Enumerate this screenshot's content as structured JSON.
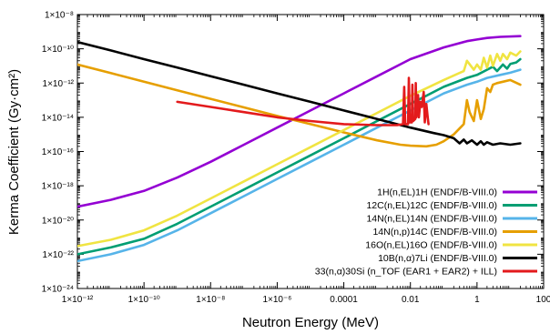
{
  "chart_data": {
    "type": "line",
    "title": "",
    "xlabel": "Neutron Energy (MeV)",
    "ylabel": "Kerma Coefficient (Gy·cm²)",
    "xscale": "log",
    "yscale": "log",
    "xlim": [
      1e-12,
      100
    ],
    "ylim": [
      1e-24,
      1e-08
    ],
    "grid": false,
    "legend_position": "bottom-right",
    "x_ticks": [
      {
        "value": 1e-12,
        "label": "1×10⁻¹²"
      },
      {
        "value": 1e-10,
        "label": "1×10⁻¹⁰"
      },
      {
        "value": 1e-08,
        "label": "1×10⁻⁸"
      },
      {
        "value": 1e-06,
        "label": "1×10⁻⁶"
      },
      {
        "value": 0.0001,
        "label": "0.0001"
      },
      {
        "value": 0.01,
        "label": "0.01"
      },
      {
        "value": 1,
        "label": "1"
      },
      {
        "value": 100,
        "label": "100"
      }
    ],
    "y_ticks": [
      {
        "value": 1e-08,
        "label": "1×10⁻⁸"
      },
      {
        "value": 1e-10,
        "label": "1×10⁻¹⁰"
      },
      {
        "value": 1e-12,
        "label": "1×10⁻¹²"
      },
      {
        "value": 1e-14,
        "label": "1×10⁻¹⁴"
      },
      {
        "value": 1e-16,
        "label": "1×10⁻¹⁶"
      },
      {
        "value": 1e-18,
        "label": "1×10⁻¹⁸"
      },
      {
        "value": 1e-20,
        "label": "1×10⁻²⁰"
      },
      {
        "value": 1e-22,
        "label": "1×10⁻²²"
      },
      {
        "value": 1e-24,
        "label": "1×10⁻²⁴"
      }
    ],
    "series": [
      {
        "name": "1H(n,EL)1H (ENDF/B-VIII.0)",
        "color": "#9400d3",
        "points": [
          [
            1e-12,
            6e-20
          ],
          [
            1e-11,
            1.5e-19
          ],
          [
            1e-10,
            5e-19
          ],
          [
            1e-09,
            3e-18
          ],
          [
            1e-08,
            2.5e-17
          ],
          [
            1e-07,
            2.5e-16
          ],
          [
            1e-06,
            2.5e-15
          ],
          [
            1e-05,
            2.5e-14
          ],
          [
            0.0001,
            2.5e-13
          ],
          [
            0.001,
            2.5e-12
          ],
          [
            0.01,
            2.5e-11
          ],
          [
            0.1,
            1.2e-10
          ],
          [
            0.5,
            2.8e-10
          ],
          [
            1,
            3.5e-10
          ],
          [
            2,
            4.3e-10
          ],
          [
            5,
            5e-10
          ],
          [
            20,
            5.5e-10
          ]
        ]
      },
      {
        "name": "12C(n,EL)12C (ENDF/B-VIII.0)",
        "color": "#009e73",
        "points": [
          [
            1e-12,
            1e-22
          ],
          [
            1e-11,
            2.5e-22
          ],
          [
            1e-10,
            8e-22
          ],
          [
            1e-09,
            6e-21
          ],
          [
            1e-08,
            6e-20
          ],
          [
            1e-07,
            6e-19
          ],
          [
            1e-06,
            6e-18
          ],
          [
            1e-05,
            6e-17
          ],
          [
            0.0001,
            6e-16
          ],
          [
            0.001,
            6e-15
          ],
          [
            0.01,
            6e-14
          ],
          [
            0.1,
            6e-13
          ],
          [
            0.5,
            2e-12
          ],
          [
            1,
            3e-12
          ],
          [
            2,
            6e-12
          ],
          [
            3,
            9e-12
          ],
          [
            4,
            5e-12
          ],
          [
            6,
            1.2e-11
          ],
          [
            8,
            7e-12
          ],
          [
            10,
            1.3e-11
          ],
          [
            15,
            1.6e-11
          ],
          [
            20,
            2.5e-11
          ]
        ]
      },
      {
        "name": "14N(n,EL)14N (ENDF/B-VIII.0)",
        "color": "#56b4e9",
        "points": [
          [
            1e-12,
            4e-23
          ],
          [
            1e-11,
            1e-22
          ],
          [
            1e-10,
            3.5e-22
          ],
          [
            1e-09,
            2.5e-21
          ],
          [
            1e-08,
            2.5e-20
          ],
          [
            1e-07,
            2.5e-19
          ],
          [
            1e-06,
            2.5e-18
          ],
          [
            1e-05,
            2.5e-17
          ],
          [
            0.0001,
            2.5e-16
          ],
          [
            0.001,
            2.5e-15
          ],
          [
            0.01,
            2.5e-14
          ],
          [
            0.1,
            2.5e-13
          ],
          [
            0.5,
            8e-13
          ],
          [
            1,
            1.2e-12
          ],
          [
            2,
            2e-12
          ],
          [
            5,
            3e-12
          ],
          [
            10,
            4e-12
          ],
          [
            20,
            6e-12
          ]
        ]
      },
      {
        "name": "14N(n,p)14C (ENDF/B-VIII.0)",
        "color": "#e69f00",
        "points": [
          [
            1e-12,
            1.2e-11
          ],
          [
            1e-11,
            3.8e-12
          ],
          [
            1e-10,
            1.2e-12
          ],
          [
            1e-09,
            3.8e-13
          ],
          [
            1e-08,
            1.2e-13
          ],
          [
            1e-07,
            3.8e-14
          ],
          [
            1e-06,
            1.2e-14
          ],
          [
            1e-05,
            4e-15
          ],
          [
            0.0001,
            1.3e-15
          ],
          [
            0.001,
            4.5e-16
          ],
          [
            0.005,
            2.5e-16
          ],
          [
            0.01,
            2.2e-16
          ],
          [
            0.03,
            2e-16
          ],
          [
            0.06,
            2.5e-16
          ],
          [
            0.1,
            4e-16
          ],
          [
            0.2,
            1e-15
          ],
          [
            0.4,
            4e-15
          ],
          [
            0.5,
            1e-13
          ],
          [
            0.6,
            2e-14
          ],
          [
            0.8,
            6e-15
          ],
          [
            1,
            1e-13
          ],
          [
            1.3,
            8e-15
          ],
          [
            1.6,
            3e-14
          ],
          [
            2,
            5e-13
          ],
          [
            2.5,
            3e-13
          ],
          [
            3,
            8e-13
          ],
          [
            4,
            1e-12
          ],
          [
            6,
            1.2e-12
          ],
          [
            10,
            1.5e-12
          ],
          [
            20,
            8e-13
          ]
        ]
      },
      {
        "name": "16O(n,EL)16O (ENDF/B-VIII.0)",
        "color": "#f0e442",
        "points": [
          [
            1e-12,
            3e-22
          ],
          [
            1e-11,
            7e-22
          ],
          [
            1e-10,
            2.5e-21
          ],
          [
            1e-09,
            1.8e-20
          ],
          [
            1e-08,
            1.8e-19
          ],
          [
            1e-07,
            1.8e-18
          ],
          [
            1e-06,
            1.8e-17
          ],
          [
            1e-05,
            1.8e-16
          ],
          [
            0.0001,
            1.8e-15
          ],
          [
            0.001,
            1.8e-14
          ],
          [
            0.01,
            1.8e-13
          ],
          [
            0.1,
            1.5e-12
          ],
          [
            0.4,
            5e-12
          ],
          [
            0.5,
            2e-11
          ],
          [
            0.8,
            6e-12
          ],
          [
            1,
            1.2e-11
          ],
          [
            1.3,
            6e-12
          ],
          [
            1.6,
            3e-11
          ],
          [
            2,
            8e-12
          ],
          [
            2.5,
            4e-11
          ],
          [
            3,
            1e-11
          ],
          [
            4,
            5e-11
          ],
          [
            5,
            2e-11
          ],
          [
            6,
            5e-11
          ],
          [
            8,
            2.5e-11
          ],
          [
            10,
            6e-11
          ],
          [
            15,
            4e-11
          ],
          [
            20,
            7e-11
          ]
        ]
      },
      {
        "name": "10B(n,α)7Li (ENDF/B-VIII.0)",
        "color": "#000000",
        "points": [
          [
            1e-12,
            2.5e-10
          ],
          [
            1e-11,
            8e-11
          ],
          [
            1e-10,
            2.5e-11
          ],
          [
            1e-09,
            8e-12
          ],
          [
            1e-08,
            2.5e-12
          ],
          [
            1e-07,
            8e-13
          ],
          [
            1e-06,
            2.5e-13
          ],
          [
            1e-05,
            8e-14
          ],
          [
            0.0001,
            2.5e-14
          ],
          [
            0.001,
            8e-15
          ],
          [
            0.01,
            2.5e-15
          ],
          [
            0.05,
            1.2e-15
          ],
          [
            0.1,
            9e-16
          ],
          [
            0.2,
            6e-16
          ],
          [
            0.3,
            3e-16
          ],
          [
            0.4,
            5e-16
          ],
          [
            0.5,
            3e-16
          ],
          [
            0.7,
            4.5e-16
          ],
          [
            1,
            2.5e-16
          ],
          [
            1.3,
            4e-16
          ],
          [
            1.6,
            2.5e-16
          ],
          [
            2,
            3.5e-16
          ],
          [
            3,
            2.5e-16
          ],
          [
            5,
            3e-16
          ],
          [
            10,
            2.5e-16
          ],
          [
            20,
            3e-16
          ]
        ]
      },
      {
        "name": "33(n,α)30Si (n_TOF (EAR1 + EAR2) + ILL)",
        "color": "#e31a1c",
        "points": [
          [
            1e-09,
            8e-14
          ],
          [
            1e-08,
            4e-14
          ],
          [
            1e-07,
            2e-14
          ],
          [
            1e-06,
            1e-14
          ],
          [
            1e-05,
            6e-15
          ],
          [
            0.0001,
            4e-15
          ],
          [
            0.001,
            3.5e-15
          ],
          [
            0.004,
            3.5e-15
          ],
          [
            0.006,
            4e-15
          ],
          [
            0.0065,
            6e-13
          ],
          [
            0.007,
            4e-15
          ],
          [
            0.0085,
            4e-15
          ],
          [
            0.009,
            2e-12
          ],
          [
            0.0095,
            5e-15
          ],
          [
            0.011,
            5e-15
          ],
          [
            0.0115,
            8e-13
          ],
          [
            0.012,
            6e-15
          ],
          [
            0.014,
            8e-15
          ],
          [
            0.0145,
            1e-12
          ],
          [
            0.015,
            1e-14
          ],
          [
            0.017,
            2e-13
          ],
          [
            0.018,
            1e-14
          ],
          [
            0.02,
            8e-14
          ],
          [
            0.022,
            4e-14
          ],
          [
            0.025,
            3e-13
          ],
          [
            0.027,
            5e-15
          ],
          [
            0.03,
            6e-14
          ],
          [
            0.033,
            1e-14
          ],
          [
            0.035,
            4e-15
          ]
        ]
      }
    ]
  }
}
